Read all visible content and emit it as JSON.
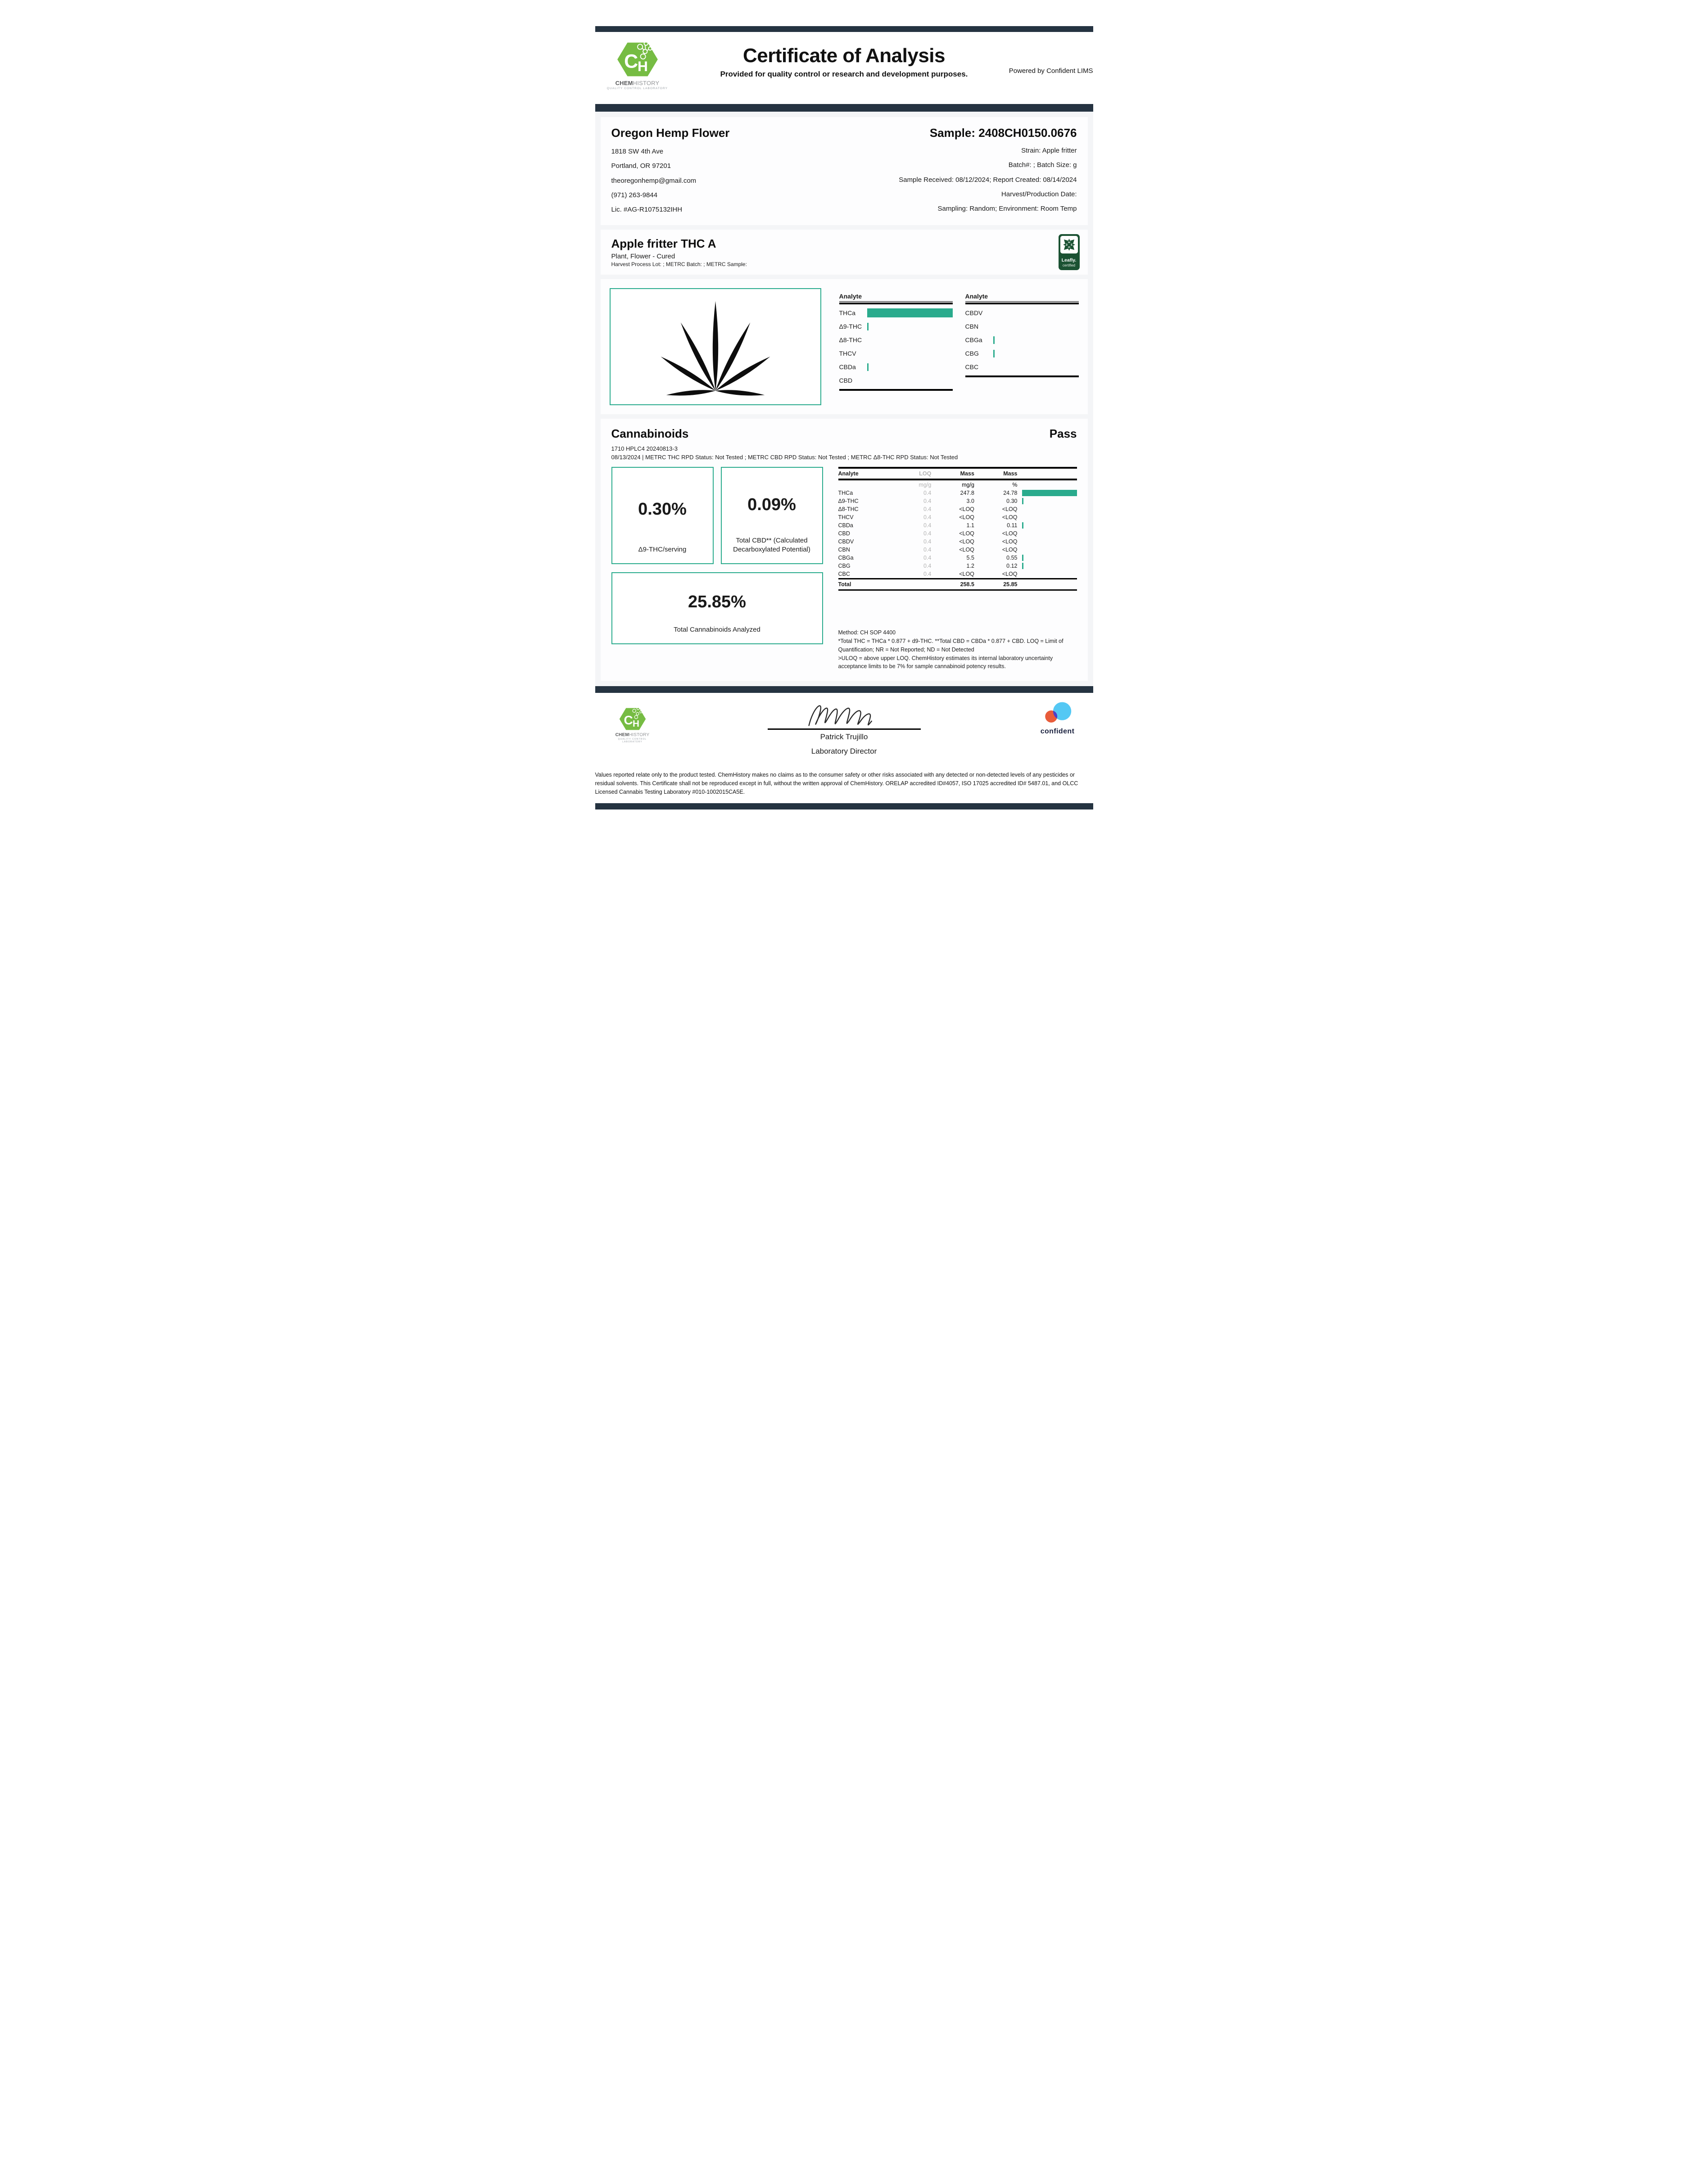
{
  "header": {
    "title": "Certificate of Analysis",
    "subtitle": "Provided for quality control or research and development purposes.",
    "powered_by": "Powered by Confident LIMS",
    "logo": {
      "initials": "CH",
      "name_bold": "CHEM",
      "name_rest": "HISTORY",
      "tagline": "QUALITY CONTROL LABORATORY"
    }
  },
  "client": {
    "name": "Oregon Hemp Flower",
    "address1": "1818 SW 4th Ave",
    "address2": "Portland, OR 97201",
    "email": "theoregonhemp@gmail.com",
    "phone": "(971) 263-9844",
    "license": "Lic. #AG-R1075132IHH"
  },
  "sample": {
    "id": "Sample: 2408CH0150.0676",
    "strain": "Strain: Apple fritter",
    "batch": "Batch#: ; Batch Size:  g",
    "received": "Sample Received: 08/12/2024; Report Created: 08/14/2024",
    "harvest": "Harvest/Production Date:",
    "sampling": "Sampling: Random; Environment: Room Temp"
  },
  "product": {
    "name": "Apple fritter THC A",
    "type": "Plant, Flower - Cured",
    "metrc": "Harvest Process Lot: ; METRC Batch: ; METRC Sample:",
    "leafly_line1": "Leafly.",
    "leafly_line2": "certified"
  },
  "mini_chart": {
    "max_pct": 24.78,
    "left": {
      "header": "Analyte",
      "rows": [
        {
          "label": "THCa",
          "pct": 24.78
        },
        {
          "label": "Δ9-THC",
          "pct": 0.3
        },
        {
          "label": "Δ8-THC",
          "pct": 0
        },
        {
          "label": "THCV",
          "pct": 0
        },
        {
          "label": "CBDa",
          "pct": 0.11
        },
        {
          "label": "CBD",
          "pct": 0
        }
      ]
    },
    "right": {
      "header": "Analyte",
      "rows": [
        {
          "label": "CBDV",
          "pct": 0
        },
        {
          "label": "CBN",
          "pct": 0
        },
        {
          "label": "CBGa",
          "pct": 0.55
        },
        {
          "label": "CBG",
          "pct": 0.12
        },
        {
          "label": "CBC",
          "pct": 0
        }
      ]
    }
  },
  "cannabinoids": {
    "title": "Cannabinoids",
    "status": "Pass",
    "instrument": "1710 HPLC4 20240813-3",
    "status_line": "08/13/2024 | METRC THC RPD Status: Not Tested ; METRC CBD RPD Status: Not Tested ; METRC Δ8-THC RPD Status: Not Tested",
    "highlights": [
      {
        "value": "0.30%",
        "label": "Δ9-THC/serving"
      },
      {
        "value": "0.09%",
        "label": "Total CBD** (Calculated Decarboxylated Potential)"
      },
      {
        "value": "25.85%",
        "label": "Total Cannabinoids Analyzed"
      }
    ],
    "table": {
      "headers": {
        "analyte": "Analyte",
        "loq": "LOQ",
        "mass1": "Mass",
        "mass2": "Mass"
      },
      "units": {
        "loq": "mg/g",
        "mass1": "mg/g",
        "mass2": "%"
      },
      "rows": [
        {
          "analyte": "THCa",
          "loq": "0.4",
          "mass_mgg": "247.8",
          "mass_pct": "24.78",
          "bar_pct": 24.78
        },
        {
          "analyte": "Δ9-THC",
          "loq": "0.4",
          "mass_mgg": "3.0",
          "mass_pct": "0.30",
          "bar_pct": 0.3
        },
        {
          "analyte": "Δ8-THC",
          "loq": "0.4",
          "mass_mgg": "<LOQ",
          "mass_pct": "<LOQ",
          "bar_pct": 0
        },
        {
          "analyte": "THCV",
          "loq": "0.4",
          "mass_mgg": "<LOQ",
          "mass_pct": "<LOQ",
          "bar_pct": 0
        },
        {
          "analyte": "CBDa",
          "loq": "0.4",
          "mass_mgg": "1.1",
          "mass_pct": "0.11",
          "bar_pct": 0.11
        },
        {
          "analyte": "CBD",
          "loq": "0.4",
          "mass_mgg": "<LOQ",
          "mass_pct": "<LOQ",
          "bar_pct": 0
        },
        {
          "analyte": "CBDV",
          "loq": "0.4",
          "mass_mgg": "<LOQ",
          "mass_pct": "<LOQ",
          "bar_pct": 0
        },
        {
          "analyte": "CBN",
          "loq": "0.4",
          "mass_mgg": "<LOQ",
          "mass_pct": "<LOQ",
          "bar_pct": 0
        },
        {
          "analyte": "CBGa",
          "loq": "0.4",
          "mass_mgg": "5.5",
          "mass_pct": "0.55",
          "bar_pct": 0.55
        },
        {
          "analyte": "CBG",
          "loq": "0.4",
          "mass_mgg": "1.2",
          "mass_pct": "0.12",
          "bar_pct": 0.12
        },
        {
          "analyte": "CBC",
          "loq": "0.4",
          "mass_mgg": "<LOQ",
          "mass_pct": "<LOQ",
          "bar_pct": 0
        }
      ],
      "total": {
        "label": "Total",
        "mass_mgg": "258.5",
        "mass_pct": "25.85"
      }
    },
    "notes": [
      "Method: CH SOP 4400",
      "*Total THC = THCa * 0.877 + d9-THC. **Total CBD = CBDa * 0.877 + CBD. LOQ = Limit of Quantification; NR = Not Reported; ND = Not Detected",
      ">ULOQ = above upper LOQ. ChemHistory estimates its internal laboratory uncertainty acceptance limits to be 7% for sample cannabinoid potency results."
    ]
  },
  "signature": {
    "name": "Patrick Trujillo",
    "title": "Laboratory Director"
  },
  "footer": {
    "confident_label": "confident",
    "disclaimer": "Values reported relate only to the product tested. ChemHistory makes no claims as to the consumer safety or other risks associated with any detected or non-detected levels of any pesticides or residual solvents. This Certificate shall not be reproduced except in full, without the written approval of ChemHistory.  ORELAP accredited ID#4057, ISO 17025 accredited ID# 5487.01, and OLCC Licensed Cannabis Testing Laboratory #010-1002015CA5E."
  },
  "colors": {
    "accent_teal": "#2aab8d",
    "navy": "#253341",
    "brand_green": "#76bc43",
    "leafly_green": "#1b5233"
  }
}
